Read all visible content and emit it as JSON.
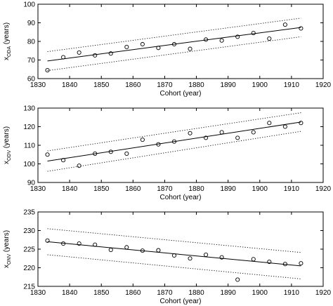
{
  "chart_data": [
    {
      "type": "scatter",
      "xlabel": "Cohort (year)",
      "ylabel_main": "x",
      "ylabel_sub": "ODA",
      "ylabel_unit": " (years)",
      "xlim": [
        1830,
        1920
      ],
      "ylim": [
        60,
        100
      ],
      "xticks": [
        1830,
        1840,
        1850,
        1860,
        1870,
        1880,
        1890,
        1900,
        1910,
        1920
      ],
      "yticks": [
        60,
        70,
        80,
        90,
        100
      ],
      "x": [
        1833,
        1838,
        1843,
        1848,
        1853,
        1858,
        1863,
        1868,
        1873,
        1878,
        1883,
        1888,
        1893,
        1898,
        1903,
        1908,
        1913
      ],
      "y": [
        64.5,
        71.5,
        74,
        72.5,
        73.5,
        77,
        78.5,
        76.5,
        78.5,
        76,
        81,
        80.5,
        82.5,
        84.5,
        81.5,
        89,
        87
      ],
      "fit": {
        "x": [
          1833,
          1913
        ],
        "y": [
          69.5,
          87.5
        ]
      },
      "ci_upper": {
        "x": [
          1833,
          1913
        ],
        "y": [
          74.5,
          92.5
        ]
      },
      "ci_lower": {
        "x": [
          1833,
          1913
        ],
        "y": [
          64.3,
          82.5
        ]
      }
    },
    {
      "type": "scatter",
      "xlabel": "Cohort (year)",
      "ylabel_main": "x",
      "ylabel_sub": "ODV",
      "ylabel_unit": " (years)",
      "xlim": [
        1830,
        1920
      ],
      "ylim": [
        90,
        130
      ],
      "xticks": [
        1830,
        1840,
        1850,
        1860,
        1870,
        1880,
        1890,
        1900,
        1910,
        1920
      ],
      "yticks": [
        90,
        100,
        110,
        120,
        130
      ],
      "x": [
        1833,
        1838,
        1843,
        1848,
        1853,
        1858,
        1863,
        1868,
        1873,
        1878,
        1883,
        1888,
        1893,
        1898,
        1903,
        1908,
        1913
      ],
      "y": [
        105,
        102,
        99,
        105.5,
        106.5,
        105.5,
        113,
        110.5,
        112,
        116.5,
        114,
        117,
        114,
        117,
        122,
        120,
        122
      ],
      "fit": {
        "x": [
          1833,
          1913
        ],
        "y": [
          101.5,
          122.5
        ]
      },
      "ci_upper": {
        "x": [
          1833,
          1913
        ],
        "y": [
          107,
          127.5
        ]
      },
      "ci_lower": {
        "x": [
          1833,
          1913
        ],
        "y": [
          96,
          117.5
        ]
      }
    },
    {
      "type": "scatter",
      "xlabel": "Cohort (year)",
      "ylabel_main": "x",
      "ylabel_sub": "ONV",
      "ylabel_unit": " (years)",
      "xlim": [
        1830,
        1920
      ],
      "ylim": [
        215,
        235
      ],
      "xticks": [
        1830,
        1840,
        1850,
        1860,
        1870,
        1880,
        1890,
        1900,
        1910,
        1920
      ],
      "yticks": [
        215,
        220,
        225,
        230,
        235
      ],
      "x": [
        1833,
        1838,
        1843,
        1848,
        1853,
        1858,
        1863,
        1868,
        1873,
        1878,
        1883,
        1888,
        1893,
        1898,
        1903,
        1908,
        1913
      ],
      "y": [
        227.3,
        226.5,
        226.5,
        226.2,
        224.8,
        225.5,
        224.6,
        224.7,
        223.3,
        222.5,
        223.5,
        222.8,
        216.8,
        222.3,
        221.6,
        221,
        221.2
      ],
      "fit": {
        "x": [
          1833,
          1913
        ],
        "y": [
          227,
          220.5
        ]
      },
      "ci_upper": {
        "x": [
          1833,
          1913
        ],
        "y": [
          230.5,
          224.1
        ]
      },
      "ci_lower": {
        "x": [
          1833,
          1913
        ],
        "y": [
          223.5,
          217
        ]
      }
    }
  ]
}
